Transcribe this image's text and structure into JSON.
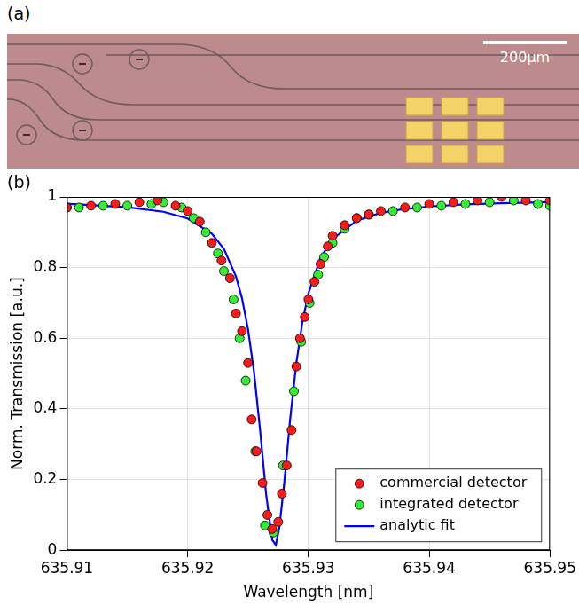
{
  "panel_labels": [
    "(a)",
    "(b)"
  ],
  "scale_bar": "200μm",
  "chart_data": {
    "type": "scatter",
    "x_label": "Wavelength [nm]",
    "y_label": "Norm. Transmission [a.u.]",
    "xlim": [
      635.91,
      635.95
    ],
    "xticks": [
      635.91,
      635.92,
      635.93,
      635.94,
      635.95
    ],
    "ylim": [
      0,
      1
    ],
    "yticks": [
      0,
      0.2,
      0.4,
      0.6,
      0.8,
      1
    ],
    "grid": true,
    "legend": "lower right",
    "series": [
      {
        "name": "commercial detector",
        "color": "#ff1a1a",
        "marker": "circle",
        "x": [
          635.91,
          635.912,
          635.914,
          635.916,
          635.9175,
          635.919,
          635.92,
          635.921,
          635.922,
          635.9228,
          635.9235,
          635.924,
          635.9245,
          635.925,
          635.9253,
          635.9257,
          635.9262,
          635.9266,
          635.927,
          635.9275,
          635.9278,
          635.9282,
          635.9286,
          635.929,
          635.9293,
          635.9297,
          635.93,
          635.9305,
          635.931,
          635.9316,
          635.932,
          635.933,
          635.934,
          635.935,
          635.936,
          635.938,
          635.94,
          635.942,
          635.944,
          635.946,
          635.948,
          635.95
        ],
        "values": [
          0.97,
          0.975,
          0.98,
          0.985,
          0.99,
          0.975,
          0.96,
          0.93,
          0.87,
          0.82,
          0.77,
          0.67,
          0.62,
          0.53,
          0.37,
          0.28,
          0.19,
          0.1,
          0.06,
          0.08,
          0.16,
          0.24,
          0.34,
          0.52,
          0.6,
          0.66,
          0.71,
          0.76,
          0.81,
          0.86,
          0.89,
          0.92,
          0.94,
          0.95,
          0.96,
          0.97,
          0.98,
          0.985,
          0.99,
          1.0,
          0.99,
          0.99
        ]
      },
      {
        "name": "integrated detector",
        "color": "#33ee33",
        "marker": "circle",
        "x": [
          635.91,
          635.911,
          635.913,
          635.915,
          635.917,
          635.918,
          635.9195,
          635.9205,
          635.9215,
          635.9225,
          635.923,
          635.9238,
          635.9243,
          635.9248,
          635.9256,
          635.9264,
          635.9271,
          635.9279,
          635.9288,
          635.9294,
          635.9301,
          635.9308,
          635.9313,
          635.932,
          635.933,
          635.934,
          635.935,
          635.937,
          635.939,
          635.941,
          635.943,
          635.945,
          635.947,
          635.949,
          635.95
        ],
        "values": [
          0.97,
          0.97,
          0.975,
          0.975,
          0.98,
          0.985,
          0.97,
          0.94,
          0.9,
          0.84,
          0.79,
          0.71,
          0.6,
          0.48,
          0.28,
          0.07,
          0.05,
          0.24,
          0.45,
          0.59,
          0.7,
          0.78,
          0.83,
          0.87,
          0.91,
          0.94,
          0.95,
          0.96,
          0.97,
          0.975,
          0.98,
          0.985,
          0.99,
          0.98,
          0.975
        ]
      },
      {
        "name": "analytic fit",
        "color": "#0000ff",
        "type": "line",
        "line_style": "solid",
        "x": [
          635.91,
          635.915,
          635.918,
          635.92,
          635.922,
          635.923,
          635.924,
          635.9245,
          635.925,
          635.9255,
          635.926,
          635.9265,
          635.927,
          635.9273,
          635.9276,
          635.928,
          635.9285,
          635.929,
          635.9295,
          635.93,
          635.931,
          635.932,
          635.934,
          635.936,
          635.938,
          635.94,
          635.943,
          635.946,
          635.95
        ],
        "values": [
          0.981,
          0.971,
          0.958,
          0.939,
          0.896,
          0.853,
          0.775,
          0.713,
          0.625,
          0.503,
          0.339,
          0.157,
          0.029,
          0.015,
          0.066,
          0.191,
          0.375,
          0.53,
          0.646,
          0.727,
          0.828,
          0.881,
          0.933,
          0.955,
          0.966,
          0.973,
          0.979,
          0.982,
          0.985
        ]
      }
    ]
  }
}
